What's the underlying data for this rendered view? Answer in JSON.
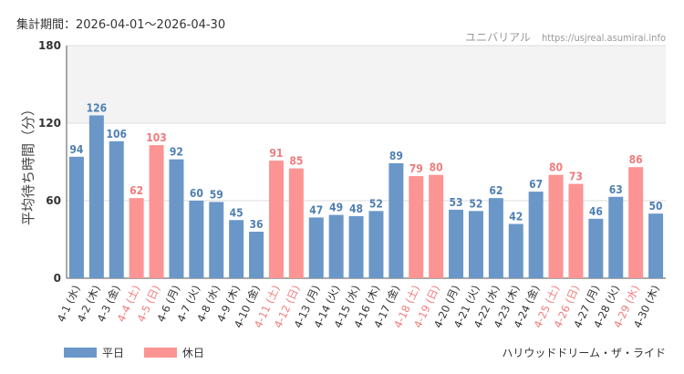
{
  "header": {
    "period_label": "集計期間：2026-04-01～2026-04-30",
    "site_name": "ユニバリアル",
    "site_url": "https://usjreal.asumirai.info"
  },
  "legend": [
    {
      "name": "平日",
      "color": "#6a97c8"
    },
    {
      "name": "休日",
      "color": "#fd9494"
    }
  ],
  "caption": "ハリウッドドリーム・ザ・ライド",
  "colors": {
    "weekday": "#6a97c8",
    "holiday": "#fd9494",
    "weekday_label": "#4f7fb3",
    "holiday_label": "#f07c7c",
    "band": "#f3f3f3"
  },
  "chart_data": {
    "type": "bar",
    "title": "",
    "xlabel": "",
    "ylabel": "平均待ち時間（分）",
    "ylim": [
      0,
      180
    ],
    "yticks": [
      0,
      60,
      120,
      180
    ],
    "grid": true,
    "categories": [
      "4-1 (水)",
      "4-2 (木)",
      "4-3 (金)",
      "4-4 (土)",
      "4-5 (日)",
      "4-6 (月)",
      "4-7 (火)",
      "4-8 (水)",
      "4-9 (木)",
      "4-10 (金)",
      "4-11 (土)",
      "4-12 (日)",
      "4-13 (月)",
      "4-14 (火)",
      "4-15 (水)",
      "4-16 (木)",
      "4-17 (金)",
      "4-18 (土)",
      "4-19 (日)",
      "4-20 (月)",
      "4-21 (火)",
      "4-22 (水)",
      "4-23 (木)",
      "4-24 (金)",
      "4-25 (土)",
      "4-26 (日)",
      "4-27 (月)",
      "4-28 (火)",
      "4-29 (水)",
      "4-30 (木)"
    ],
    "values": [
      94,
      126,
      106,
      62,
      103,
      92,
      60,
      59,
      45,
      36,
      91,
      85,
      47,
      49,
      48,
      52,
      89,
      79,
      80,
      53,
      52,
      62,
      42,
      67,
      80,
      73,
      46,
      63,
      86,
      50
    ],
    "day_type": [
      "平日",
      "平日",
      "平日",
      "休日",
      "休日",
      "平日",
      "平日",
      "平日",
      "平日",
      "平日",
      "休日",
      "休日",
      "平日",
      "平日",
      "平日",
      "平日",
      "平日",
      "休日",
      "休日",
      "平日",
      "平日",
      "平日",
      "平日",
      "平日",
      "休日",
      "休日",
      "平日",
      "平日",
      "休日",
      "平日"
    ],
    "legend_position": "bottom-left"
  }
}
